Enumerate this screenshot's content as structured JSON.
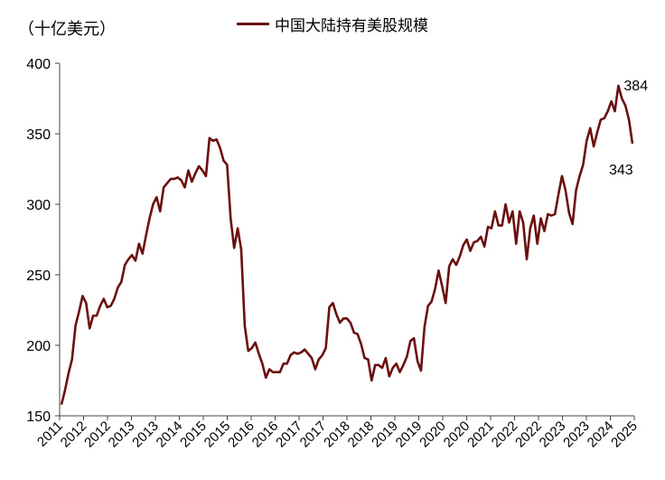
{
  "chart_data": {
    "type": "line",
    "title": "",
    "unit_label": "（十亿美元）",
    "xlabel": "",
    "ylabel": "",
    "ylim": [
      150,
      400
    ],
    "yticks": [
      150,
      200,
      250,
      300,
      350,
      400
    ],
    "xtick_labels": [
      "2011",
      "2012",
      "2012",
      "2013",
      "2013",
      "2014",
      "2015",
      "2015",
      "2016",
      "2016",
      "2017",
      "2017",
      "2018",
      "2018",
      "2019",
      "2019",
      "2020",
      "2020",
      "2021",
      "2022",
      "2022",
      "2023",
      "2023",
      "2024",
      "2025"
    ],
    "grid": false,
    "legend_position": "top",
    "series": [
      {
        "name": "中国大陆持有美股规模",
        "color": "#6b0f0f",
        "values": [
          158,
          168,
          180,
          190,
          214,
          224,
          235,
          230,
          212,
          221,
          221,
          228,
          233,
          227,
          228,
          233,
          241,
          245,
          257,
          261,
          264,
          260,
          272,
          265,
          278,
          290,
          300,
          305,
          295,
          312,
          315,
          318,
          318,
          319,
          317,
          312,
          324,
          316,
          322,
          327,
          324,
          320,
          347,
          345,
          346,
          340,
          331,
          328,
          290,
          269,
          283,
          268,
          214,
          196,
          198,
          202,
          194,
          187,
          177,
          183,
          181,
          181,
          181,
          187,
          187,
          193,
          195,
          194,
          195,
          197,
          194,
          191,
          183,
          190,
          193,
          198,
          227,
          230,
          222,
          216,
          219,
          219,
          216,
          209,
          208,
          201,
          191,
          190,
          175,
          186,
          186,
          184,
          191,
          178,
          184,
          187,
          181,
          186,
          192,
          203,
          205,
          189,
          182,
          213,
          228,
          231,
          240,
          253,
          242,
          230,
          256,
          261,
          257,
          263,
          271,
          275,
          267,
          273,
          274,
          277,
          270,
          284,
          283,
          295,
          285,
          285,
          300,
          287,
          295,
          272,
          295,
          287,
          261,
          283,
          292,
          272,
          290,
          281,
          293,
          292,
          293,
          307,
          320,
          310,
          294,
          286,
          310,
          320,
          328,
          345,
          354,
          341,
          351,
          360,
          361,
          366,
          373,
          366,
          384,
          375,
          370,
          360,
          343
        ]
      }
    ],
    "annotations": [
      {
        "text": "384",
        "x_index": 158,
        "y": 384
      },
      {
        "text": "343",
        "x_index": 162,
        "y": 343
      }
    ]
  }
}
